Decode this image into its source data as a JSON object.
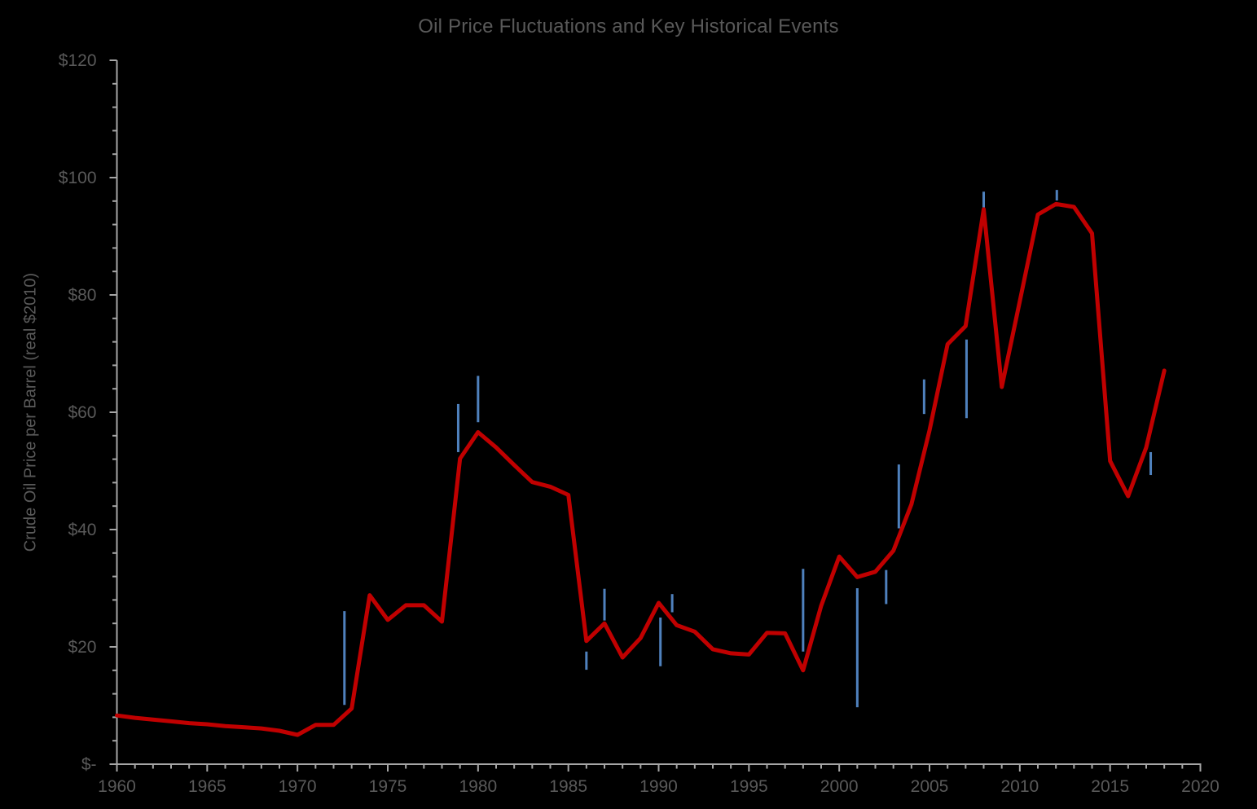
{
  "chart_data": {
    "type": "line",
    "title": "Oil Price Fluctuations and Key Historical Events",
    "xlabel": "",
    "ylabel": "Crude Oil Price per Barrel (real $2010)",
    "grid": "off",
    "legend": "none",
    "x_axis": {
      "min": 1960,
      "max": 2020,
      "major_unit": 5,
      "minor_unit": 1,
      "tick_labels": [
        "1960",
        "1965",
        "1970",
        "1975",
        "1980",
        "1985",
        "1990",
        "1995",
        "2000",
        "2005",
        "2010",
        "2015",
        "2020"
      ]
    },
    "y_axis": {
      "min": 0,
      "max": 120,
      "major_unit": 20,
      "minor_unit": 4,
      "tick_labels": [
        "$-",
        "$20",
        "$40",
        "$60",
        "$80",
        "$100",
        "$120"
      ]
    },
    "series": [
      {
        "name": "crude-oil-price-real-2010",
        "color": "#C00000",
        "x": [
          1960,
          1961,
          1962,
          1963,
          1964,
          1965,
          1966,
          1967,
          1968,
          1969,
          1970,
          1971,
          1972,
          1973,
          1974,
          1975,
          1976,
          1977,
          1978,
          1979,
          1980,
          1981,
          1982,
          1983,
          1984,
          1985,
          1986,
          1987,
          1988,
          1989,
          1990,
          1991,
          1992,
          1993,
          1994,
          1995,
          1996,
          1997,
          1998,
          1999,
          2000,
          2001,
          2002,
          2003,
          2004,
          2005,
          2006,
          2007,
          2008,
          2009,
          2010,
          2011,
          2012,
          2013,
          2014,
          2015,
          2016,
          2017,
          2018
        ],
        "values": [
          8.3,
          7.9,
          7.6,
          7.3,
          7.0,
          6.8,
          6.5,
          6.3,
          6.1,
          5.7,
          5.0,
          6.7,
          6.7,
          9.5,
          28.8,
          24.6,
          27.1,
          27.1,
          24.3,
          52.1,
          56.6,
          54.0,
          51.0,
          48.1,
          47.3,
          45.9,
          21.0,
          24.0,
          18.2,
          21.5,
          27.5,
          23.7,
          22.6,
          19.6,
          18.9,
          18.7,
          22.4,
          22.3,
          16.0,
          27.0,
          35.4,
          31.9,
          32.8,
          36.4,
          44.3,
          56.9,
          71.6,
          74.7,
          94.6,
          64.3,
          78.9,
          93.7,
          95.5,
          95.0,
          90.5,
          51.7,
          45.7,
          54.0,
          67.1
        ]
      }
    ],
    "event_markers": {
      "color": "#4F81BD",
      "items": [
        {
          "year": 1972.6,
          "from": 10.1,
          "to": 26.1
        },
        {
          "year": 1978.9,
          "from": 53.2,
          "to": 61.4
        },
        {
          "year": 1980.0,
          "from": 58.3,
          "to": 66.2
        },
        {
          "year": 1986.0,
          "from": 16.1,
          "to": 19.2
        },
        {
          "year": 1987.0,
          "from": 24.5,
          "to": 29.9
        },
        {
          "year": 1990.1,
          "from": 16.7,
          "to": 25.0
        },
        {
          "year": 1990.75,
          "from": 25.9,
          "to": 29.0
        },
        {
          "year": 1998.0,
          "from": 19.2,
          "to": 33.3
        },
        {
          "year": 2001.0,
          "from": 9.7,
          "to": 30.0
        },
        {
          "year": 2002.6,
          "from": 27.3,
          "to": 33.1
        },
        {
          "year": 2003.3,
          "from": 40.2,
          "to": 51.1
        },
        {
          "year": 2004.7,
          "from": 59.7,
          "to": 65.6
        },
        {
          "year": 2007.05,
          "from": 59.0,
          "to": 72.4
        },
        {
          "year": 2008.0,
          "from": 94.9,
          "to": 97.6
        },
        {
          "year": 2012.05,
          "from": 96.1,
          "to": 97.9
        },
        {
          "year": 2017.25,
          "from": 49.3,
          "to": 53.2
        }
      ]
    },
    "colors": {
      "background": "#000000",
      "text": "#595959",
      "axis": "#A6A6A6",
      "line": "#C00000",
      "marker": "#4F81BD"
    }
  }
}
